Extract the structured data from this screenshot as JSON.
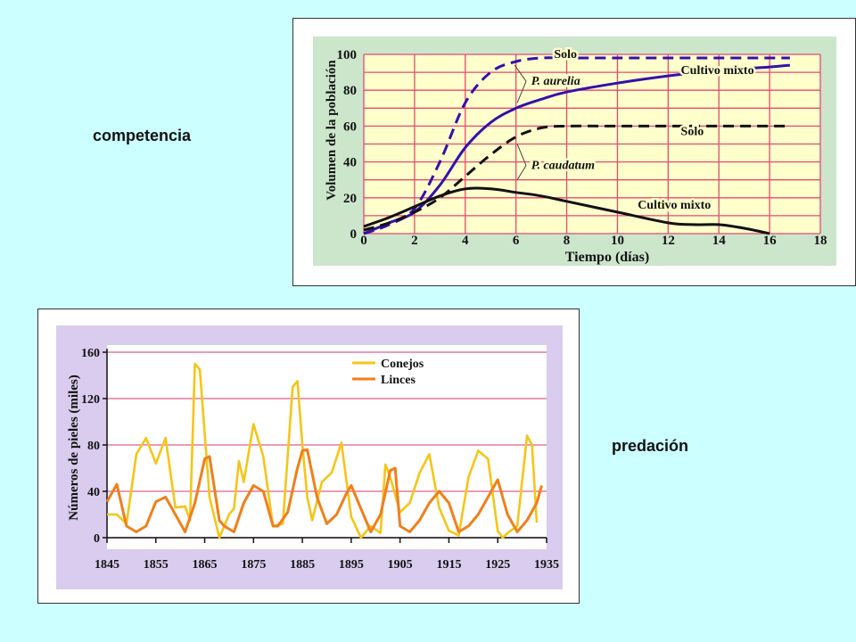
{
  "slide": {
    "label_top": "competencia",
    "label_bottom": "predación"
  },
  "chart_data": [
    {
      "type": "line",
      "title": "",
      "xlabel": "Tiempo (días)",
      "ylabel": "Volumen de la población",
      "xlim": [
        0,
        18
      ],
      "ylim": [
        0,
        100
      ],
      "x_ticks": [
        "0",
        "2",
        "4",
        "6",
        "8",
        "10",
        "12",
        "14",
        "16",
        "18"
      ],
      "y_ticks": [
        "0",
        "20",
        "40",
        "60",
        "80",
        "100"
      ],
      "grid": true,
      "colors": {
        "background": "#ffffcc",
        "frame": "#cce6cc",
        "grid": "#e64a6e",
        "aurelia": "#3311aa",
        "caudatum": "#111111"
      },
      "annotations": [
        {
          "text": "P. aurelia",
          "italic": true
        },
        {
          "text": "P. caudatum",
          "italic": true
        }
      ],
      "series": [
        {
          "name": "Solo",
          "species": "P. aurelia",
          "style": "dashed",
          "color": "#3311aa",
          "x": [
            0,
            1,
            2,
            3,
            4,
            5,
            6,
            7,
            8,
            10,
            12,
            14,
            16,
            16.8
          ],
          "y": [
            0,
            5,
            14,
            40,
            73,
            90,
            96,
            98,
            98,
            98,
            98,
            98,
            98,
            98
          ]
        },
        {
          "name": "Cultivo mixto",
          "species": "P. aurelia",
          "style": "solid",
          "color": "#3311aa",
          "x": [
            0,
            1,
            2,
            3,
            4,
            5,
            6,
            7,
            8,
            10,
            12,
            14,
            16,
            16.8
          ],
          "y": [
            0,
            6,
            12,
            27,
            48,
            62,
            70,
            75,
            79,
            84,
            88,
            91,
            93,
            94
          ]
        },
        {
          "name": "Solo",
          "species": "P. caudatum",
          "style": "dashed",
          "color": "#111111",
          "x": [
            0,
            1,
            2,
            3,
            4,
            5,
            6,
            7,
            8,
            10,
            12,
            14,
            16,
            16.8
          ],
          "y": [
            2,
            6,
            12,
            20,
            32,
            44,
            54,
            59,
            60,
            60,
            60,
            60,
            60,
            60
          ]
        },
        {
          "name": "Cultivo mixto",
          "species": "P. caudatum",
          "style": "solid",
          "color": "#111111",
          "x": [
            0,
            1,
            2,
            3,
            4,
            5,
            6,
            7,
            8,
            10,
            12,
            13,
            14,
            15,
            16
          ],
          "y": [
            4,
            9,
            15,
            21,
            25,
            25,
            23,
            21,
            18,
            12,
            6,
            5,
            5,
            3,
            0
          ]
        }
      ]
    },
    {
      "type": "line",
      "title": "",
      "xlabel": "",
      "ylabel": "Números de pieles (miles)",
      "xlim": [
        1845,
        1935
      ],
      "ylim": [
        0,
        160
      ],
      "x_ticks": [
        "1845",
        "1855",
        "1865",
        "1875",
        "1885",
        "1895",
        "1905",
        "1915",
        "1925",
        "1935"
      ],
      "y_ticks": [
        "0",
        "40",
        "80",
        "120",
        "160"
      ],
      "grid": true,
      "legend": "top-center",
      "colors": {
        "background": "#ffffff",
        "frame": "#d9ccee",
        "grid": "#dd5f8f"
      },
      "series": [
        {
          "name": "Conejos",
          "color": "#f5c518",
          "x": [
            1845,
            1847,
            1849,
            1851,
            1853,
            1855,
            1857,
            1859,
            1861,
            1862,
            1863,
            1864,
            1866,
            1868,
            1870,
            1871,
            1872,
            1873,
            1875,
            1877,
            1879,
            1881,
            1883,
            1884,
            1885,
            1886,
            1887,
            1889,
            1891,
            1893,
            1895,
            1897,
            1899,
            1901,
            1902,
            1903,
            1905,
            1907,
            1909,
            1911,
            1913,
            1915,
            1917,
            1919,
            1921,
            1923,
            1925,
            1926,
            1927,
            1929,
            1931,
            1932,
            1933
          ],
          "y": [
            20,
            20,
            12,
            72,
            86,
            64,
            86,
            26,
            27,
            15,
            150,
            145,
            35,
            0,
            20,
            25,
            66,
            48,
            98,
            70,
            10,
            12,
            130,
            135,
            80,
            35,
            15,
            48,
            56,
            82,
            18,
            0,
            10,
            4,
            63,
            52,
            22,
            30,
            56,
            72,
            26,
            6,
            2,
            52,
            75,
            68,
            6,
            0,
            4,
            10,
            88,
            80,
            13
          ]
        },
        {
          "name": "Linces",
          "color": "#f07f1a",
          "x": [
            1845,
            1847,
            1849,
            1851,
            1853,
            1855,
            1857,
            1859,
            1861,
            1863,
            1865,
            1866,
            1868,
            1869,
            1871,
            1873,
            1875,
            1877,
            1879,
            1880,
            1882,
            1884,
            1885,
            1886,
            1888,
            1890,
            1892,
            1894,
            1895,
            1897,
            1899,
            1901,
            1903,
            1904,
            1905,
            1907,
            1909,
            1911,
            1913,
            1915,
            1917,
            1919,
            1921,
            1923,
            1925,
            1927,
            1929,
            1931,
            1933,
            1934
          ],
          "y": [
            31,
            46,
            10,
            5,
            10,
            31,
            35,
            20,
            5,
            30,
            68,
            70,
            15,
            10,
            5,
            30,
            45,
            40,
            10,
            10,
            22,
            60,
            75,
            76,
            35,
            12,
            20,
            38,
            45,
            25,
            5,
            20,
            58,
            60,
            10,
            5,
            15,
            30,
            40,
            30,
            5,
            10,
            20,
            35,
            50,
            20,
            5,
            15,
            30,
            45
          ]
        }
      ]
    }
  ]
}
